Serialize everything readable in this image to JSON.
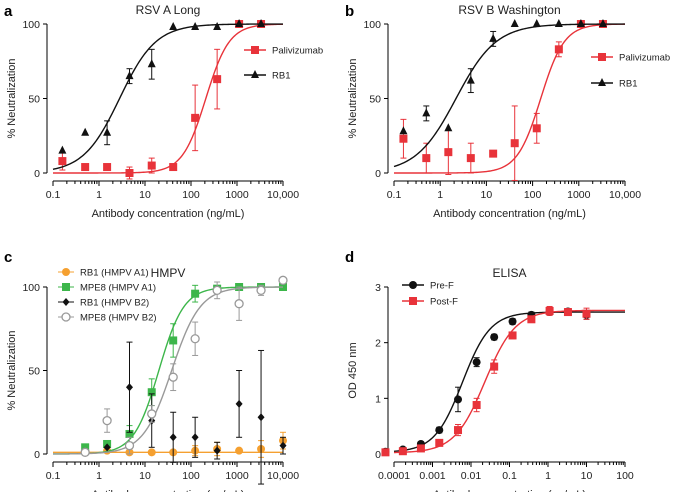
{
  "chart_data": [
    {
      "panel": "a",
      "type": "scatter",
      "title": "RSV A Long",
      "xlabel": "Antibody concentration (ng/mL)",
      "ylabel": "% Neutralization",
      "xscale": "log",
      "xlim": [
        0.1,
        10000
      ],
      "ylim": [
        0,
        100
      ],
      "xticks": [
        0.1,
        1,
        10,
        100,
        1000,
        10000
      ],
      "xtick_labels": [
        "0.1",
        "1",
        "10",
        "100",
        "1000",
        "10,000"
      ],
      "yticks": [
        0,
        50,
        100
      ],
      "ytick_labels": [
        "0",
        "50",
        "100"
      ],
      "legend_position": "right",
      "series": [
        {
          "name": "Palivizumab",
          "color": "#e8333a",
          "marker": "square",
          "x": [
            0.16,
            0.5,
            1.5,
            4.6,
            14,
            41,
            123,
            370,
            1111,
            3333
          ],
          "y": [
            8,
            4,
            4,
            0,
            5,
            4,
            37,
            63,
            100,
            100
          ],
          "err": [
            6,
            0,
            0,
            4,
            5,
            0,
            22,
            20,
            0,
            0
          ],
          "fit": {
            "ec50": 210,
            "hill": 1.7
          }
        },
        {
          "name": "RB1",
          "color": "#111111",
          "marker": "triangle",
          "x": [
            0.16,
            0.5,
            1.5,
            4.6,
            14,
            41,
            123,
            370,
            1111,
            3333
          ],
          "y": [
            15,
            27,
            27,
            65,
            73,
            98,
            98,
            98,
            100,
            100
          ],
          "err": [
            0,
            0,
            8,
            5,
            10,
            0,
            0,
            0,
            0,
            0
          ],
          "fit": {
            "ec50": 2.8,
            "hill": 1.1
          }
        }
      ]
    },
    {
      "panel": "b",
      "type": "scatter",
      "title": "RSV B Washington",
      "xlabel": "Antibody concentration (ng/mL)",
      "ylabel": "% Neutralization",
      "xscale": "log",
      "xlim": [
        0.1,
        10000
      ],
      "ylim": [
        0,
        100
      ],
      "xticks": [
        0.1,
        1,
        10,
        100,
        1000,
        10000
      ],
      "xtick_labels": [
        "0.1",
        "1",
        "10",
        "100",
        "1000",
        "10,000"
      ],
      "yticks": [
        0,
        50,
        100
      ],
      "ytick_labels": [
        "0",
        "50",
        "100"
      ],
      "legend_position": "right",
      "series": [
        {
          "name": "Palivizumab",
          "color": "#e8333a",
          "marker": "square",
          "x": [
            0.16,
            0.5,
            1.5,
            4.6,
            14,
            41,
            123,
            370,
            1111,
            3333
          ],
          "y": [
            23,
            10,
            14,
            10,
            13,
            20,
            30,
            83,
            100,
            100
          ],
          "err": [
            13,
            10,
            15,
            10,
            0,
            25,
            10,
            5,
            0,
            0
          ],
          "fit": {
            "ec50": 150,
            "hill": 1.7
          }
        },
        {
          "name": "RB1",
          "color": "#111111",
          "marker": "triangle",
          "x": [
            0.16,
            0.5,
            1.5,
            4.6,
            14,
            41,
            123,
            370,
            1111,
            3333
          ],
          "y": [
            28,
            40,
            30,
            62,
            90,
            100,
            100,
            100,
            100,
            100
          ],
          "err": [
            0,
            5,
            0,
            8,
            5,
            0,
            0,
            0,
            0,
            0
          ],
          "fit": {
            "ec50": 2.2,
            "hill": 1.0
          }
        }
      ]
    },
    {
      "panel": "c",
      "type": "scatter",
      "title": "HMPV",
      "xlabel": "Antibody concentration (ng/mL)",
      "ylabel": "% Neutralization",
      "xscale": "log",
      "xlim": [
        0.1,
        10000
      ],
      "ylim": [
        0,
        100
      ],
      "xticks": [
        0.1,
        1,
        10,
        100,
        1000,
        10000
      ],
      "xtick_labels": [
        "0.1",
        "1",
        "10",
        "100",
        "1000",
        "10,000"
      ],
      "yticks": [
        0,
        50,
        100
      ],
      "ytick_labels": [
        "0",
        "50",
        "100"
      ],
      "legend_position": "top-left",
      "series": [
        {
          "name": "RB1 (HMPV A1)",
          "color": "#f5a030",
          "marker": "circle",
          "x": [
            0.5,
            1.5,
            4.6,
            14,
            41,
            123,
            370,
            1111,
            3333,
            10000
          ],
          "y": [
            2,
            2,
            1,
            1,
            1,
            2,
            3,
            2,
            3,
            8
          ],
          "err": [
            0,
            0,
            0,
            0,
            0,
            3,
            4,
            0,
            5,
            5
          ],
          "fit": {
            "line": 1
          }
        },
        {
          "name": "MPE8 (HMPV A1)",
          "color": "#3cb64a",
          "marker": "square",
          "x": [
            0.5,
            1.5,
            4.6,
            14,
            41,
            123,
            370,
            1111,
            3333,
            10000
          ],
          "y": [
            4,
            6,
            12,
            37,
            68,
            96,
            99,
            100,
            100,
            100
          ],
          "err": [
            0,
            0,
            5,
            8,
            10,
            5,
            0,
            0,
            0,
            0
          ],
          "fit": {
            "ec50": 20,
            "hill": 1.6
          }
        },
        {
          "name": "RB1 (HMPV B2)",
          "color": "#111111",
          "marker": "diamond",
          "x": [
            0.5,
            1.5,
            4.6,
            14,
            41,
            123,
            370,
            1111,
            3333,
            10000
          ],
          "y": [
            1,
            4,
            40,
            20,
            10,
            10,
            2,
            30,
            22,
            5
          ],
          "err": [
            0,
            0,
            27,
            16,
            15,
            12,
            5,
            20,
            40,
            5
          ],
          "fit": null
        },
        {
          "name": "MPE8 (HMPV B2)",
          "color": "#999999",
          "marker": "open-circle",
          "x": [
            0.5,
            1.5,
            4.6,
            14,
            41,
            123,
            370,
            1111,
            3333,
            10000
          ],
          "y": [
            1,
            20,
            5,
            24,
            46,
            69,
            98,
            90,
            98,
            104
          ],
          "err": [
            0,
            7,
            5,
            5,
            8,
            10,
            5,
            10,
            3,
            0
          ],
          "fit": {
            "ec50": 38,
            "hill": 1.4
          }
        }
      ]
    },
    {
      "panel": "d",
      "type": "scatter",
      "title": "ELISA",
      "xlabel": "Antibody concentration (µg/mL)",
      "ylabel": "OD 450 nm",
      "xscale": "log",
      "xlim": [
        0.0001,
        100
      ],
      "ylim": [
        0,
        3
      ],
      "xticks": [
        0.0001,
        0.001,
        0.01,
        0.1,
        1,
        10,
        100
      ],
      "xtick_labels": [
        "0.0001",
        "0.001",
        "0.01",
        "0.1",
        "1",
        "10",
        "100"
      ],
      "yticks": [
        0,
        1,
        2,
        3
      ],
      "ytick_labels": [
        "0",
        "1",
        "2",
        "3"
      ],
      "legend_position": "top-left",
      "series": [
        {
          "name": "Pre-F",
          "color": "#111111",
          "marker": "circle",
          "x": [
            6e-05,
            0.00017,
            0.0005,
            0.0015,
            0.0046,
            0.014,
            0.04,
            0.12,
            0.37,
            1.1,
            3.3,
            10
          ],
          "y": [
            0.04,
            0.08,
            0.18,
            0.43,
            0.98,
            1.65,
            2.1,
            2.38,
            2.5,
            2.55,
            2.56,
            2.5
          ],
          "err": [
            0,
            0,
            0.03,
            0.05,
            0.22,
            0.08,
            0.05,
            0.05,
            0.05,
            0.05,
            0.05,
            0.08
          ],
          "fit": {
            "bottom": 0.03,
            "top": 2.55,
            "ec50": 0.006,
            "hill": 1.2
          }
        },
        {
          "name": "Post-F",
          "color": "#e8333a",
          "marker": "square",
          "x": [
            6e-05,
            0.00017,
            0.0005,
            0.0015,
            0.0046,
            0.014,
            0.04,
            0.12,
            0.37,
            1.1,
            3.3,
            10
          ],
          "y": [
            0.03,
            0.05,
            0.1,
            0.2,
            0.43,
            0.88,
            1.57,
            2.13,
            2.42,
            2.57,
            2.55,
            2.52
          ],
          "err": [
            0,
            0,
            0,
            0.05,
            0.1,
            0.12,
            0.12,
            0.06,
            0.05,
            0.08,
            0.05,
            0.1
          ],
          "fit": {
            "bottom": 0.02,
            "top": 2.58,
            "ec50": 0.023,
            "hill": 1.1
          }
        }
      ]
    }
  ]
}
